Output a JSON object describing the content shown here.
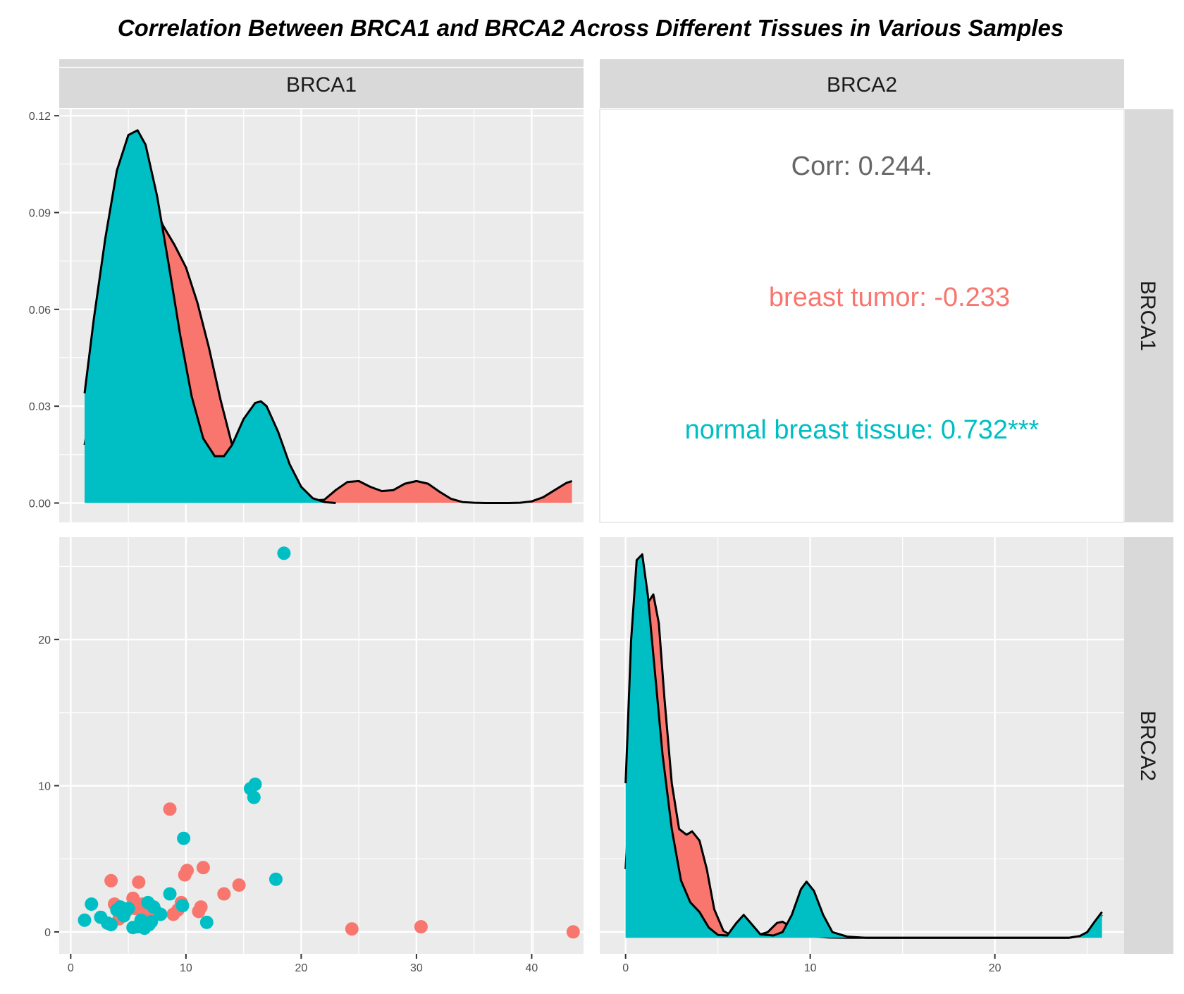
{
  "chart_data": {
    "type": "pairs",
    "title": "Correlation Between BRCA1 and BRCA2 Across Different Tissues in Various Samples",
    "variables": [
      "BRCA1",
      "BRCA2"
    ],
    "groups": [
      {
        "name": "breast tumor",
        "color": "#F8766D"
      },
      {
        "name": "normal breast tissue",
        "color": "#00BFC4"
      }
    ],
    "correlation": {
      "overall_label": "Corr: 0.244.",
      "groups": [
        {
          "label": "breast tumor: -0.233",
          "color": "#F8766D"
        },
        {
          "label": "normal breast tissue: 0.732***",
          "color": "#00BFC4"
        }
      ]
    },
    "axes": {
      "brca1_x": {
        "range": [
          -1,
          44.5
        ],
        "ticks": [
          0,
          10,
          20,
          30,
          40
        ],
        "tick_labels": [
          "0",
          "10",
          "20",
          "30",
          "40"
        ]
      },
      "brca2_x": {
        "range": [
          -1.4,
          27
        ],
        "ticks": [
          0,
          10,
          20
        ],
        "tick_labels": [
          "0",
          "10",
          "20"
        ]
      },
      "density_brca1_y": {
        "range": [
          -0.006,
          0.122
        ],
        "ticks": [
          0.0,
          0.03,
          0.06,
          0.09,
          0.12
        ],
        "tick_labels": [
          "0.00",
          "0.03",
          "0.06",
          "0.09",
          "0.12"
        ]
      },
      "scatter_y": {
        "range": [
          -1.5,
          27
        ],
        "ticks": [
          0,
          10,
          20
        ],
        "tick_labels": [
          "0",
          "10",
          "20"
        ]
      },
      "density_brca2_y": {
        "range": [
          -0.028,
          0.7
        ]
      }
    },
    "density_brca1": {
      "breast tumor": [
        [
          1.2,
          0.018
        ],
        [
          2,
          0.035
        ],
        [
          3,
          0.058
        ],
        [
          4,
          0.08
        ],
        [
          5,
          0.094
        ],
        [
          6,
          0.098
        ],
        [
          7,
          0.094
        ],
        [
          8,
          0.086
        ],
        [
          9,
          0.08
        ],
        [
          10,
          0.073
        ],
        [
          11,
          0.062
        ],
        [
          12,
          0.048
        ],
        [
          13,
          0.032
        ],
        [
          14,
          0.018
        ],
        [
          15,
          0.009
        ],
        [
          16,
          0.005
        ],
        [
          17,
          0.004
        ],
        [
          18,
          0.003
        ],
        [
          19,
          0.002
        ],
        [
          20,
          0.001
        ],
        [
          21,
          0.0008
        ],
        [
          22,
          0.001
        ],
        [
          23,
          0.004
        ],
        [
          24,
          0.0065
        ],
        [
          25,
          0.0068
        ],
        [
          26,
          0.005
        ],
        [
          27,
          0.0037
        ],
        [
          28,
          0.004
        ],
        [
          29,
          0.006
        ],
        [
          30,
          0.0068
        ],
        [
          31,
          0.006
        ],
        [
          32,
          0.0035
        ],
        [
          33,
          0.0013
        ],
        [
          34,
          0.0003
        ],
        [
          35,
          0.0001
        ],
        [
          36,
          0
        ],
        [
          37,
          0
        ],
        [
          38,
          0
        ],
        [
          39,
          0.0001
        ],
        [
          40,
          0.0005
        ],
        [
          41,
          0.0018
        ],
        [
          42,
          0.004
        ],
        [
          43,
          0.0062
        ],
        [
          43.5,
          0.0068
        ]
      ],
      "normal breast tissue": [
        [
          1.2,
          0.034
        ],
        [
          2,
          0.057
        ],
        [
          3,
          0.082
        ],
        [
          4,
          0.103
        ],
        [
          5,
          0.114
        ],
        [
          5.8,
          0.1155
        ],
        [
          6.5,
          0.111
        ],
        [
          7.5,
          0.095
        ],
        [
          8.5,
          0.074
        ],
        [
          9.5,
          0.052
        ],
        [
          10.5,
          0.033
        ],
        [
          11.5,
          0.02
        ],
        [
          12.5,
          0.0145
        ],
        [
          13.3,
          0.0145
        ],
        [
          14,
          0.018
        ],
        [
          15,
          0.026
        ],
        [
          16,
          0.031
        ],
        [
          16.5,
          0.0315
        ],
        [
          17,
          0.03
        ],
        [
          18,
          0.022
        ],
        [
          19,
          0.012
        ],
        [
          20,
          0.005
        ],
        [
          21,
          0.0015
        ],
        [
          22,
          0.0003
        ],
        [
          23,
          0
        ]
      ]
    },
    "density_brca2": {
      "breast tumor": [
        [
          0,
          0.12
        ],
        [
          0.3,
          0.3
        ],
        [
          0.7,
          0.5
        ],
        [
          1.1,
          0.58
        ],
        [
          1.5,
          0.6
        ],
        [
          1.8,
          0.55
        ],
        [
          2.1,
          0.42
        ],
        [
          2.5,
          0.27
        ],
        [
          2.9,
          0.19
        ],
        [
          3.3,
          0.18
        ],
        [
          3.6,
          0.186
        ],
        [
          4,
          0.17
        ],
        [
          4.4,
          0.12
        ],
        [
          4.8,
          0.05
        ],
        [
          5.3,
          0.012
        ],
        [
          5.8,
          0.003
        ],
        [
          6.3,
          0.008
        ],
        [
          6.7,
          0.009
        ],
        [
          7.2,
          0.005
        ],
        [
          7.7,
          0.01
        ],
        [
          8.2,
          0.026
        ],
        [
          8.5,
          0.028
        ],
        [
          8.8,
          0.022
        ],
        [
          9.3,
          0.01
        ],
        [
          9.8,
          0.004
        ],
        [
          10.3,
          0.002
        ],
        [
          11,
          0.0005
        ],
        [
          12,
          0
        ],
        [
          14,
          0
        ],
        [
          18,
          0
        ],
        [
          22,
          0
        ],
        [
          24,
          0
        ],
        [
          24.8,
          0.004
        ],
        [
          25.3,
          0.018
        ],
        [
          25.8,
          0.04
        ]
      ],
      "normal breast tissue": [
        [
          0,
          0.27
        ],
        [
          0.3,
          0.52
        ],
        [
          0.6,
          0.66
        ],
        [
          0.9,
          0.67
        ],
        [
          1.2,
          0.6
        ],
        [
          1.6,
          0.46
        ],
        [
          2,
          0.32
        ],
        [
          2.5,
          0.19
        ],
        [
          3,
          0.1
        ],
        [
          3.5,
          0.062
        ],
        [
          4,
          0.045
        ],
        [
          4.5,
          0.018
        ],
        [
          5,
          0.005
        ],
        [
          5.5,
          0.004
        ],
        [
          6,
          0.026
        ],
        [
          6.4,
          0.04
        ],
        [
          6.8,
          0.025
        ],
        [
          7.3,
          0.006
        ],
        [
          8,
          0.004
        ],
        [
          8.5,
          0.01
        ],
        [
          9,
          0.04
        ],
        [
          9.5,
          0.085
        ],
        [
          9.8,
          0.098
        ],
        [
          10.2,
          0.082
        ],
        [
          10.7,
          0.04
        ],
        [
          11.2,
          0.01
        ],
        [
          12,
          0.002
        ],
        [
          13,
          0
        ],
        [
          18,
          0
        ],
        [
          24,
          0
        ],
        [
          24.6,
          0.003
        ],
        [
          25,
          0.01
        ],
        [
          25.4,
          0.028
        ],
        [
          25.8,
          0.045
        ]
      ]
    },
    "scatter": {
      "breast tumor": [
        [
          3.5,
          3.5
        ],
        [
          3.8,
          1.9
        ],
        [
          4.2,
          0.9
        ],
        [
          4.8,
          1.4
        ],
        [
          5.4,
          2.3
        ],
        [
          5.6,
          1.6
        ],
        [
          5.9,
          3.4
        ],
        [
          6.2,
          1.9
        ],
        [
          6.6,
          1.3
        ],
        [
          7.3,
          1.5
        ],
        [
          8.6,
          8.4
        ],
        [
          8.9,
          1.2
        ],
        [
          9.3,
          1.5
        ],
        [
          9.6,
          2.0
        ],
        [
          9.9,
          3.9
        ],
        [
          10.1,
          4.2
        ],
        [
          11.1,
          1.4
        ],
        [
          11.3,
          1.7
        ],
        [
          11.5,
          4.4
        ],
        [
          13.3,
          2.6
        ],
        [
          14.6,
          3.2
        ],
        [
          24.4,
          0.2
        ],
        [
          30.4,
          0.35
        ],
        [
          43.6,
          0
        ]
      ],
      "normal breast tissue": [
        [
          1.2,
          0.8
        ],
        [
          1.8,
          1.9
        ],
        [
          2.6,
          1.0
        ],
        [
          3.2,
          0.6
        ],
        [
          3.5,
          0.5
        ],
        [
          4.0,
          1.5
        ],
        [
          4.3,
          1.7
        ],
        [
          4.6,
          1.1
        ],
        [
          5.0,
          1.6
        ],
        [
          5.4,
          0.3
        ],
        [
          5.8,
          0.35
        ],
        [
          6.1,
          0.8
        ],
        [
          6.4,
          0.25
        ],
        [
          6.7,
          2.0
        ],
        [
          6.8,
          0.5
        ],
        [
          7.0,
          0.7
        ],
        [
          7.2,
          1.7
        ],
        [
          7.8,
          1.2
        ],
        [
          8.6,
          2.6
        ],
        [
          9.7,
          1.8
        ],
        [
          9.8,
          6.4
        ],
        [
          11.8,
          0.65
        ],
        [
          15.6,
          9.8
        ],
        [
          15.9,
          9.2
        ],
        [
          16.0,
          10.1
        ],
        [
          17.8,
          3.6
        ],
        [
          18.5,
          25.9
        ]
      ]
    }
  }
}
